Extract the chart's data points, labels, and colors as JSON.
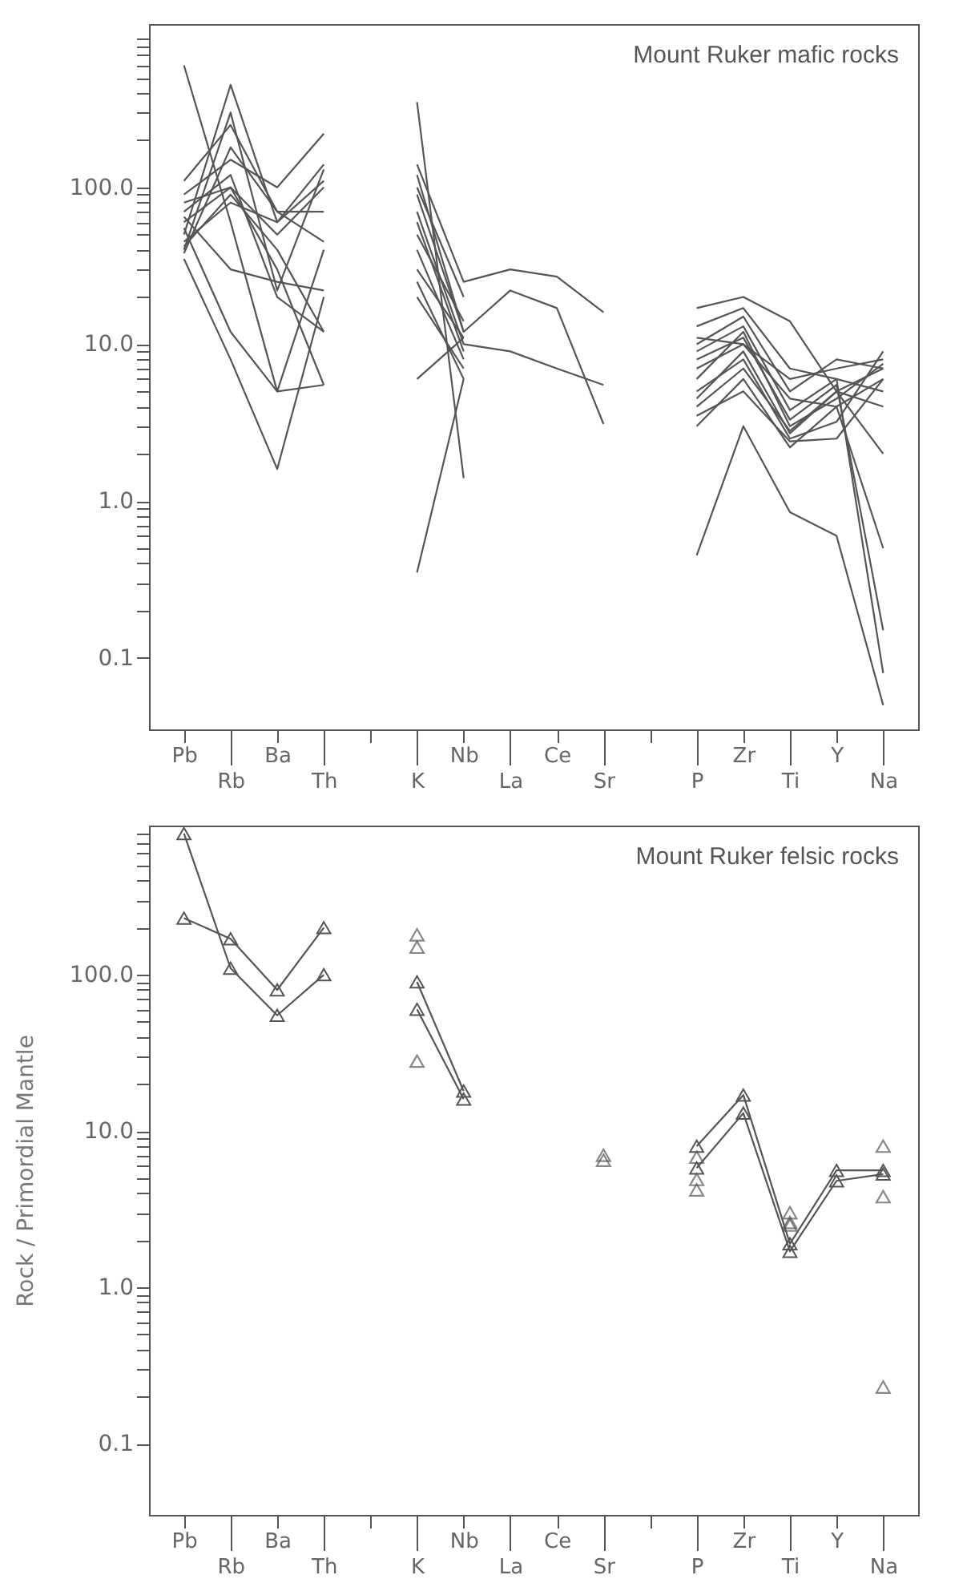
{
  "chart_data": [
    {
      "type": "line",
      "annotations": [
        "Mount Ruker mafic rocks"
      ],
      "categories": [
        "Pb",
        "Rb",
        "Ba",
        "Th",
        null,
        "K",
        "Nb",
        "La",
        "Ce",
        "Sr",
        null,
        "P",
        "Zr",
        "Ti",
        "Y",
        "Na"
      ],
      "log": "y",
      "ylim": [
        0.035,
        1100
      ],
      "yticks": [
        {
          "value": 0.1,
          "label": "0.1"
        },
        {
          "value": 0.2,
          "label": null
        },
        {
          "value": 0.3,
          "label": null
        },
        {
          "value": 0.4,
          "label": null
        },
        {
          "value": 0.5,
          "label": null
        },
        {
          "value": 0.6,
          "label": null
        },
        {
          "value": 0.7,
          "label": null
        },
        {
          "value": 0.8,
          "label": null
        },
        {
          "value": 0.9,
          "label": null
        },
        {
          "value": 1,
          "label": "1.0"
        },
        {
          "value": 2,
          "label": null
        },
        {
          "value": 3,
          "label": null
        },
        {
          "value": 4,
          "label": null
        },
        {
          "value": 5,
          "label": null
        },
        {
          "value": 6,
          "label": null
        },
        {
          "value": 7,
          "label": null
        },
        {
          "value": 8,
          "label": null
        },
        {
          "value": 9,
          "label": null
        },
        {
          "value": 10,
          "label": "10.0"
        },
        {
          "value": 20,
          "label": null
        },
        {
          "value": 30,
          "label": null
        },
        {
          "value": 40,
          "label": null
        },
        {
          "value": 50,
          "label": null
        },
        {
          "value": 60,
          "label": null
        },
        {
          "value": 70,
          "label": null
        },
        {
          "value": 80,
          "label": null
        },
        {
          "value": 90,
          "label": null
        },
        {
          "value": 100,
          "label": "100.0"
        },
        {
          "value": 200,
          "label": null
        },
        {
          "value": 300,
          "label": null
        },
        {
          "value": 400,
          "label": null
        },
        {
          "value": 500,
          "label": null
        },
        {
          "value": 600,
          "label": null
        },
        {
          "value": 700,
          "label": null
        },
        {
          "value": 800,
          "label": null
        },
        {
          "value": 900,
          "label": null
        }
      ],
      "grid": false,
      "series": [
        {
          "color": "#555555",
          "values": [
            600,
            60,
            5,
            5.5,
            null,
            350,
            1.4,
            null,
            null,
            null,
            null,
            0.45,
            3,
            0.85,
            0.6,
            0.05
          ]
        },
        {
          "color": "#555555",
          "values": [
            50,
            450,
            60,
            110,
            null,
            140,
            25,
            30,
            27,
            16,
            null,
            17,
            20,
            14,
            5,
            7
          ]
        },
        {
          "color": "#555555",
          "values": [
            40,
            300,
            22,
            130,
            null,
            120,
            12,
            22,
            17,
            3.1,
            null,
            13,
            17,
            7,
            6,
            0.08
          ]
        },
        {
          "color": "#555555",
          "values": [
            35,
            8,
            1.6,
            20,
            null,
            70,
            10,
            9,
            7,
            5.5,
            null,
            8,
            11,
            3.3,
            5.5,
            0.15
          ]
        },
        {
          "color": "#555555",
          "values": [
            90,
            150,
            100,
            220,
            null,
            60,
            9,
            null,
            null,
            null,
            null,
            7,
            10,
            4.5,
            4,
            6
          ]
        },
        {
          "color": "#555555",
          "values": [
            70,
            120,
            20,
            12,
            null,
            0.35,
            6,
            null,
            null,
            null,
            null,
            6,
            12,
            3,
            4.5,
            7.5
          ]
        },
        {
          "color": "#555555",
          "values": [
            60,
            100,
            30,
            5.5,
            null,
            90,
            12,
            null,
            null,
            null,
            null,
            5,
            8,
            2.5,
            3.2,
            9
          ]
        },
        {
          "color": "#555555",
          "values": [
            45,
            80,
            60,
            140,
            null,
            40,
            8,
            null,
            null,
            null,
            null,
            4,
            7,
            2.8,
            5,
            2
          ]
        },
        {
          "color": "#555555",
          "values": [
            55,
            12,
            5,
            40,
            null,
            30,
            11,
            null,
            null,
            null,
            null,
            3,
            6,
            2.2,
            4,
            0.5
          ]
        },
        {
          "color": "#555555",
          "values": [
            38,
            180,
            70,
            70,
            null,
            50,
            14,
            null,
            null,
            null,
            null,
            9,
            13,
            3.8,
            6,
            5
          ]
        },
        {
          "color": "#555555",
          "values": [
            80,
            100,
            50,
            100,
            null,
            25,
            6,
            null,
            null,
            null,
            null,
            10,
            15,
            5,
            8,
            7
          ]
        },
        {
          "color": "#555555",
          "values": [
            65,
            30,
            25,
            22,
            null,
            100,
            20,
            null,
            null,
            null,
            null,
            11,
            10,
            6,
            7,
            8
          ]
        },
        {
          "color": "#555555",
          "values": [
            42,
            90,
            40,
            12,
            null,
            6,
            11,
            null,
            null,
            null,
            null,
            4.5,
            9,
            2.7,
            5,
            4
          ]
        },
        {
          "color": "#555555",
          "values": [
            110,
            250,
            70,
            45,
            null,
            20,
            7,
            null,
            null,
            null,
            null,
            3.5,
            5,
            2.4,
            2.5,
            6
          ]
        }
      ]
    },
    {
      "type": "line",
      "ylabel": "Rock / Primordial Mantle",
      "annotations": [
        "Mount Ruker felsic rocks"
      ],
      "categories": [
        "Pb",
        "Rb",
        "Ba",
        "Th",
        null,
        "K",
        "Nb",
        "La",
        "Ce",
        "Sr",
        null,
        "P",
        "Zr",
        "Ti",
        "Y",
        "Na"
      ],
      "log": "y",
      "ylim": [
        0.035,
        900
      ],
      "yticks": [
        {
          "value": 0.1,
          "label": "0.1"
        },
        {
          "value": 0.2,
          "label": null
        },
        {
          "value": 0.3,
          "label": null
        },
        {
          "value": 0.4,
          "label": null
        },
        {
          "value": 0.5,
          "label": null
        },
        {
          "value": 0.6,
          "label": null
        },
        {
          "value": 0.7,
          "label": null
        },
        {
          "value": 0.8,
          "label": null
        },
        {
          "value": 0.9,
          "label": null
        },
        {
          "value": 1,
          "label": "1.0"
        },
        {
          "value": 2,
          "label": null
        },
        {
          "value": 3,
          "label": null
        },
        {
          "value": 4,
          "label": null
        },
        {
          "value": 5,
          "label": null
        },
        {
          "value": 6,
          "label": null
        },
        {
          "value": 7,
          "label": null
        },
        {
          "value": 8,
          "label": null
        },
        {
          "value": 9,
          "label": null
        },
        {
          "value": 10,
          "label": "10.0"
        },
        {
          "value": 20,
          "label": null
        },
        {
          "value": 30,
          "label": null
        },
        {
          "value": 40,
          "label": null
        },
        {
          "value": 50,
          "label": null
        },
        {
          "value": 60,
          "label": null
        },
        {
          "value": 70,
          "label": null
        },
        {
          "value": 80,
          "label": null
        },
        {
          "value": 90,
          "label": null
        },
        {
          "value": 100,
          "label": "100.0"
        },
        {
          "value": 200,
          "label": null
        },
        {
          "value": 300,
          "label": null
        },
        {
          "value": 400,
          "label": null
        },
        {
          "value": 500,
          "label": null
        },
        {
          "value": 600,
          "label": null
        },
        {
          "value": 700,
          "label": null
        },
        {
          "value": 800,
          "label": null
        }
      ],
      "grid": false,
      "marker": "triangle",
      "series": [
        {
          "color": "#555555",
          "values": [
            800,
            110,
            55,
            100,
            null,
            90,
            18,
            null,
            null,
            null,
            null,
            8,
            17,
            1.9,
            5.6,
            5.6
          ]
        },
        {
          "color": "#555555",
          "values": [
            230,
            170,
            80,
            200,
            null,
            60,
            16,
            null,
            null,
            null,
            null,
            5.8,
            13,
            1.7,
            4.8,
            5.3
          ]
        },
        {
          "type": "scatter",
          "color": "#555555",
          "values": [
            null,
            null,
            null,
            null,
            null,
            180,
            null,
            null,
            null,
            7,
            null,
            6.8,
            null,
            3,
            null,
            8
          ]
        },
        {
          "type": "scatter",
          "color": "#555555",
          "values": [
            null,
            null,
            null,
            null,
            null,
            150,
            null,
            null,
            null,
            6.5,
            null,
            4.9,
            null,
            2.5,
            null,
            3.8
          ]
        },
        {
          "type": "scatter",
          "color": "#555555",
          "values": [
            null,
            null,
            null,
            null,
            null,
            28,
            null,
            null,
            null,
            null,
            null,
            4.2,
            null,
            2.6,
            null,
            0.23
          ]
        }
      ]
    }
  ]
}
